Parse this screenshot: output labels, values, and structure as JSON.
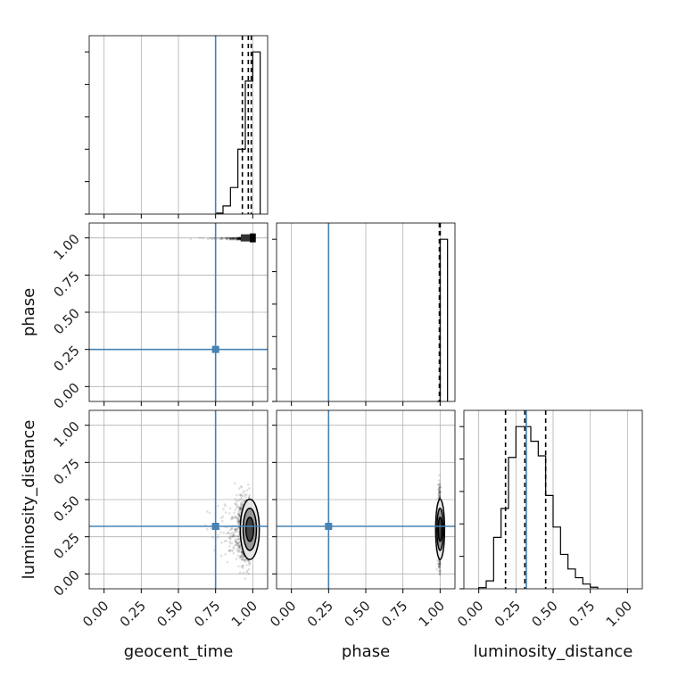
{
  "chart_data": {
    "type": "corner",
    "parameters": [
      "geocent_time",
      "phase",
      "luminosity_distance"
    ],
    "axis_labels": {
      "x": [
        "geocent_time",
        "phase",
        "luminosity_distance"
      ],
      "y": [
        "phase",
        "luminosity_distance"
      ]
    },
    "xlim": [
      -0.1,
      1.1
    ],
    "ylim": [
      -0.1,
      1.1
    ],
    "tick_labels": [
      "0.00",
      "0.25",
      "0.50",
      "0.75",
      "1.00"
    ],
    "tick_values": [
      0,
      0.25,
      0.5,
      0.75,
      1.0
    ],
    "grid": true,
    "truths": {
      "geocent_time": 0.75,
      "phase": 0.25,
      "luminosity_distance": 0.32
    },
    "truth_color": "#4682b4",
    "histogram_color": "#000000",
    "histograms": {
      "geocent_time": {
        "bins": [
          0.75,
          0.8,
          0.85,
          0.9,
          0.95,
          1.0,
          1.05
        ],
        "counts": [
          0.3,
          2.5,
          8.2,
          20,
          41,
          50
        ],
        "quantiles": [
          0.93,
          0.97,
          0.99
        ]
      },
      "phase": {
        "bins": [
          0.98,
          1.0,
          1.05
        ],
        "counts": [
          0,
          50
        ],
        "quantiles": [
          0.995,
          1.0,
          1.0
        ]
      },
      "luminosity_distance": {
        "bins": [
          0.0,
          0.05,
          0.1,
          0.15,
          0.2,
          0.25,
          0.3,
          0.35,
          0.4,
          0.45,
          0.5,
          0.55,
          0.6,
          0.65,
          0.7,
          0.75,
          0.8
        ],
        "counts": [
          0.3,
          2.0,
          13.0,
          20.3,
          33.2,
          41.0,
          41.0,
          37.3,
          33.6,
          23.6,
          15.6,
          8.7,
          5.0,
          2.8,
          1.2,
          0.4
        ],
        "quantiles": [
          0.18,
          0.31,
          0.45
        ]
      }
    },
    "scatter_panels": [
      {
        "x": "geocent_time",
        "y": "phase",
        "center": [
          0.99,
          1.0
        ],
        "spread": [
          0.04,
          0.005
        ]
      },
      {
        "x": "geocent_time",
        "y": "luminosity_distance",
        "center": [
          0.98,
          0.3
        ],
        "spread": [
          0.04,
          0.11
        ]
      },
      {
        "x": "phase",
        "y": "luminosity_distance",
        "center": [
          1.0,
          0.3
        ],
        "spread": [
          0.004,
          0.11
        ]
      }
    ]
  }
}
